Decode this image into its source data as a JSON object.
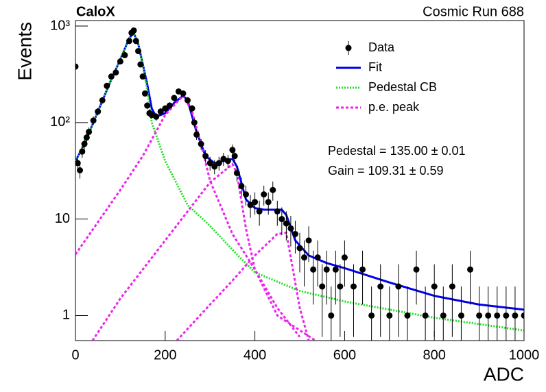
{
  "chart_data": {
    "type": "line",
    "title": "CaloX",
    "subtitle": "Cosmic Run 688",
    "xlabel": "ADC",
    "ylabel": "Events",
    "annotations": [
      "Pedestal = 135.00 ± 0.01",
      "Gain = 109.31 ± 0.59"
    ],
    "xlim": [
      0,
      1000
    ],
    "xticks": [
      0,
      200,
      400,
      600,
      800,
      1000
    ],
    "ylim": [
      0.55,
      1140
    ],
    "yscale": "log",
    "yticks": [
      1,
      10,
      {
        "value": 100,
        "label": "10²"
      },
      {
        "value": 1000,
        "label": "10³"
      }
    ],
    "legend": "upper right",
    "series": [
      {
        "name": "Data",
        "kind": "errorbar",
        "color": "#000000",
        "x": [
          0,
          5,
          10,
          15,
          20,
          25,
          30,
          40,
          50,
          60,
          70,
          80,
          90,
          100,
          110,
          120,
          125,
          130,
          135,
          140,
          145,
          150,
          155,
          160,
          165,
          170,
          180,
          190,
          200,
          210,
          220,
          230,
          240,
          250,
          260,
          265,
          270,
          280,
          290,
          300,
          310,
          320,
          330,
          340,
          350,
          355,
          360,
          370,
          380,
          390,
          400,
          410,
          420,
          430,
          440,
          450,
          460,
          470,
          480,
          490,
          500,
          510,
          520,
          530,
          540,
          550,
          560,
          570,
          580,
          590,
          600,
          620,
          640,
          660,
          680,
          700,
          720,
          740,
          760,
          780,
          800,
          820,
          840,
          860,
          880,
          900,
          920,
          940,
          960,
          980,
          1000
        ],
        "values": [
          380,
          38,
          32,
          50,
          60,
          70,
          80,
          105,
          130,
          170,
          240,
          300,
          330,
          430,
          500,
          700,
          850,
          900,
          700,
          550,
          400,
          300,
          200,
          150,
          125,
          120,
          115,
          130,
          140,
          150,
          180,
          210,
          200,
          170,
          140,
          100,
          75,
          60,
          45,
          38,
          35,
          38,
          42,
          40,
          52,
          45,
          30,
          22,
          18,
          14,
          15,
          12,
          18,
          15,
          20,
          12,
          10,
          9,
          8,
          7,
          5,
          4,
          6,
          3,
          4,
          2,
          3,
          1,
          3,
          2,
          4,
          2,
          3,
          1,
          2,
          1,
          2,
          1,
          3,
          1,
          2,
          1,
          2,
          1,
          3,
          1,
          1,
          1,
          1,
          1,
          1
        ],
        "errors": [
          19.5,
          6.2,
          5.7,
          7.1,
          7.7,
          8.4,
          8.9,
          10.2,
          11.4,
          13,
          15.5,
          17.3,
          18.2,
          20.7,
          22.4,
          26.5,
          29.2,
          30,
          26.5,
          23.5,
          20,
          17.3,
          14.1,
          12.2,
          11.2,
          11,
          10.7,
          11.4,
          11.8,
          12.2,
          13.4,
          14.5,
          14.1,
          13,
          11.8,
          10,
          8.7,
          7.7,
          6.7,
          6.2,
          5.9,
          6.2,
          6.5,
          6.3,
          7.2,
          6.7,
          5.5,
          4.7,
          4.2,
          3.7,
          3.9,
          3.5,
          4.2,
          3.9,
          4.5,
          3.5,
          3.2,
          3,
          2.8,
          2.6,
          2.2,
          2,
          2.4,
          1.7,
          2,
          1.4,
          1.7,
          1,
          1.7,
          1.4,
          2,
          1.4,
          1.7,
          1,
          1.4,
          1,
          1.4,
          1,
          1.7,
          1,
          1.4,
          1,
          1.4,
          1,
          1.7,
          1,
          1,
          1,
          1,
          1,
          1
        ]
      },
      {
        "name": "Fit",
        "kind": "line",
        "color": "#0000ee",
        "line_style": "solid",
        "x": [
          0,
          20,
          50,
          80,
          100,
          120,
          130,
          140,
          160,
          170,
          180,
          200,
          220,
          240,
          250,
          270,
          290,
          310,
          330,
          350,
          360,
          380,
          400,
          420,
          460,
          470,
          490,
          520,
          560,
          600,
          700,
          800,
          900,
          1000
        ],
        "values": [
          40,
          60,
          130,
          280,
          450,
          750,
          850,
          650,
          250,
          140,
          115,
          125,
          160,
          190,
          170,
          80,
          45,
          38,
          40,
          42,
          35,
          16,
          13,
          12.5,
          12.5,
          11,
          6,
          4.2,
          3.5,
          3.1,
          2.2,
          1.6,
          1.3,
          1.15
        ]
      },
      {
        "name": "Pedestal CB",
        "kind": "line",
        "color": "#22dd22",
        "line_style": "dotted",
        "x": [
          0,
          20,
          50,
          80,
          100,
          120,
          130,
          140,
          150,
          160,
          170,
          200,
          250,
          300,
          350,
          400,
          500,
          600,
          800,
          1000
        ],
        "values": [
          40,
          60,
          130,
          280,
          450,
          750,
          850,
          650,
          400,
          220,
          100,
          40,
          14,
          8.5,
          4.8,
          2.8,
          1.8,
          1.4,
          0.95,
          0.7
        ]
      },
      {
        "name": "p.e. peak",
        "kind": "line",
        "color": "#ee22ee",
        "line_style": "dashed",
        "x": [
          0,
          100,
          150,
          200,
          240,
          260,
          280,
          300,
          350,
          400,
          450,
          500,
          null,
          38,
          100,
          200,
          250,
          300,
          350,
          360,
          380,
          400,
          450,
          535,
          null,
          226,
          300,
          350,
          400,
          450,
          470,
          480,
          500,
          520
        ],
        "values": [
          4.3,
          20,
          45,
          120,
          190,
          130,
          60,
          25,
          7,
          3,
          1.2,
          0.6,
          null,
          0.55,
          1.5,
          6,
          12,
          24,
          37,
          30,
          8,
          3,
          1.0,
          0.55,
          null,
          0.55,
          1.3,
          2.3,
          4.2,
          7,
          7.2,
          4,
          1.2,
          0.55
        ]
      }
    ]
  }
}
